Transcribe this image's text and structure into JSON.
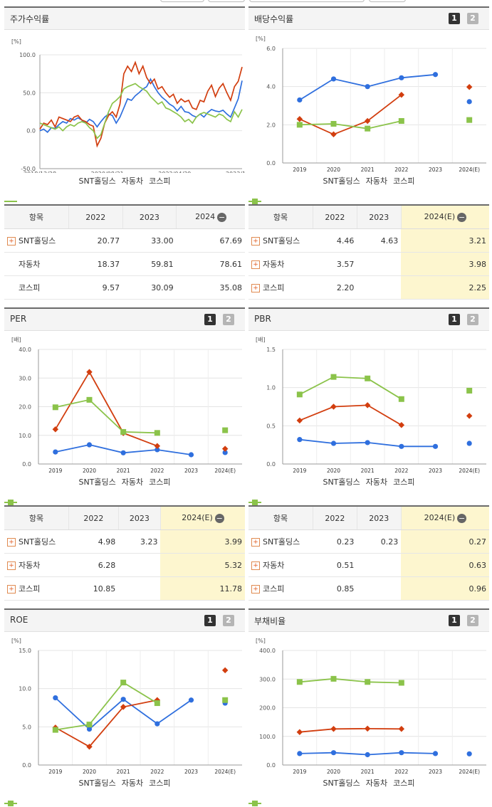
{
  "colors": {
    "snt": "#2f6fde",
    "auto": "#d23e0f",
    "kospi": "#8bc34a"
  },
  "legend": [
    "SNT홀딩스",
    "자동차",
    "코스피"
  ],
  "pager": {
    "one": "1",
    "two": "2"
  },
  "charts": [
    {
      "id": "stock-return",
      "title": "주가수익률",
      "chart_data": {
        "type": "line",
        "unit": "[%]",
        "ylim": [
          -50,
          100
        ],
        "yticks": [
          "100.0",
          "50.0",
          "0.0",
          "-50.0"
        ],
        "xticks": [
          "2018/12/28",
          "2020/08/31",
          "2022/04/29",
          "2023/12/28"
        ],
        "series": [
          {
            "name": "SNT홀딩스",
            "values": [
              0,
              2,
              -2,
              4,
              3,
              8,
              12,
              10,
              16,
              14,
              17,
              14,
              10,
              15,
              12,
              5,
              12,
              18,
              22,
              20,
              10,
              18,
              30,
              42,
              40,
              46,
              50,
              55,
              58,
              68,
              58,
              50,
              44,
              40,
              35,
              32,
              26,
              32,
              25,
              24,
              20,
              18,
              22,
              18,
              24,
              28,
              26,
              25,
              27,
              22,
              18,
              30,
              42,
              66
            ]
          },
          {
            "name": "자동차",
            "values": [
              2,
              10,
              8,
              14,
              5,
              18,
              16,
              14,
              12,
              18,
              20,
              14,
              12,
              8,
              6,
              -20,
              -10,
              10,
              20,
              25,
              18,
              35,
              75,
              85,
              78,
              90,
              75,
              85,
              70,
              62,
              68,
              55,
              58,
              50,
              44,
              48,
              36,
              42,
              38,
              40,
              30,
              28,
              40,
              38,
              52,
              60,
              45,
              56,
              62,
              50,
              40,
              58,
              65,
              84
            ]
          },
          {
            "name": "코스피",
            "values": [
              10,
              8,
              6,
              4,
              2,
              5,
              0,
              5,
              8,
              6,
              10,
              12,
              10,
              4,
              0,
              -10,
              -5,
              10,
              25,
              36,
              40,
              45,
              55,
              58,
              60,
              62,
              58,
              55,
              52,
              45,
              40,
              35,
              38,
              30,
              28,
              25,
              22,
              18,
              12,
              15,
              10,
              18,
              22,
              24,
              22,
              20,
              18,
              22,
              20,
              15,
              12,
              25,
              18,
              28
            ]
          }
        ]
      }
    },
    {
      "id": "dividend-yield",
      "title": "배당수익률",
      "chart_data": {
        "type": "line",
        "categories": [
          "2019",
          "2020",
          "2021",
          "2022",
          "2023",
          "2024(E)"
        ],
        "unit": "[%]",
        "ylim": [
          0,
          6
        ],
        "yticks": [
          "6.0",
          "4.0",
          "2.0",
          "0.0"
        ],
        "series": [
          {
            "name": "SNT홀딩스",
            "values": [
              3.3,
              4.4,
              4.0,
              4.46,
              4.63,
              3.21
            ]
          },
          {
            "name": "자동차",
            "values": [
              2.3,
              1.5,
              2.2,
              3.57,
              null,
              3.98
            ]
          },
          {
            "name": "코스피",
            "values": [
              2.0,
              2.05,
              1.8,
              2.2,
              null,
              2.25
            ]
          }
        ]
      }
    },
    {
      "id": "per",
      "title": "PER",
      "chart_data": {
        "type": "line",
        "categories": [
          "2019",
          "2020",
          "2021",
          "2022",
          "2023",
          "2024(E)"
        ],
        "unit": "[배]",
        "ylim": [
          0,
          40
        ],
        "yticks": [
          "40.0",
          "30.0",
          "20.0",
          "10.0",
          "0.0"
        ],
        "series": [
          {
            "name": "SNT홀딩스",
            "values": [
              4.2,
              6.7,
              3.9,
              4.98,
              3.23,
              3.99
            ]
          },
          {
            "name": "자동차",
            "values": [
              12.1,
              32.1,
              10.8,
              6.28,
              null,
              5.32
            ]
          },
          {
            "name": "코스피",
            "values": [
              19.8,
              22.4,
              11.2,
              10.85,
              null,
              11.78
            ]
          }
        ]
      }
    },
    {
      "id": "pbr",
      "title": "PBR",
      "chart_data": {
        "type": "line",
        "categories": [
          "2019",
          "2020",
          "2021",
          "2022",
          "2023",
          "2024(E)"
        ],
        "unit": "[배]",
        "ylim": [
          0,
          1.5
        ],
        "yticks": [
          "1.5",
          "1.0",
          "0.5",
          "0.0"
        ],
        "series": [
          {
            "name": "SNT홀딩스",
            "values": [
              0.32,
              0.27,
              0.28,
              0.23,
              0.23,
              0.27
            ]
          },
          {
            "name": "자동차",
            "values": [
              0.57,
              0.75,
              0.77,
              0.51,
              null,
              0.63
            ]
          },
          {
            "name": "코스피",
            "values": [
              0.91,
              1.14,
              1.12,
              0.85,
              null,
              0.96
            ]
          }
        ]
      }
    },
    {
      "id": "roe",
      "title": "ROE",
      "chart_data": {
        "type": "line",
        "categories": [
          "2019",
          "2020",
          "2021",
          "2022",
          "2023",
          "2024(E)"
        ],
        "unit": "[%]",
        "ylim": [
          0,
          15
        ],
        "yticks": [
          "15.0",
          "10.0",
          "5.0",
          "0.0"
        ],
        "series": [
          {
            "name": "SNT홀딩스",
            "values": [
              8.8,
              4.7,
              8.6,
              5.4,
              8.5,
              8.1
            ]
          },
          {
            "name": "자동차",
            "values": [
              4.9,
              2.4,
              7.6,
              8.5,
              null,
              12.4
            ]
          },
          {
            "name": "코스피",
            "values": [
              4.6,
              5.3,
              10.8,
              8.1,
              null,
              8.5
            ]
          }
        ]
      }
    },
    {
      "id": "debt-ratio",
      "title": "부채비율",
      "chart_data": {
        "type": "line",
        "categories": [
          "2019",
          "2020",
          "2021",
          "2022",
          "2023",
          "2024(E)"
        ],
        "unit": "[%]",
        "ylim": [
          0,
          400
        ],
        "yticks": [
          "400.0",
          "300.0",
          "200.0",
          "100.0",
          "0.0"
        ],
        "series": [
          {
            "name": "SNT홀딩스",
            "values": [
              40,
              43,
              36,
              43,
              40,
              39
            ]
          },
          {
            "name": "자동차",
            "values": [
              115,
              126,
              127,
              126,
              null,
              null
            ]
          },
          {
            "name": "코스피",
            "values": [
              290,
              301,
              290,
              287,
              null,
              null
            ]
          }
        ]
      }
    }
  ],
  "tables": [
    {
      "id": "stock-return-table",
      "headers": [
        "항목",
        "2022",
        "2023",
        "2024"
      ],
      "rows": [
        {
          "name": "SNT홀딩스",
          "plus": true,
          "values": [
            "20.77",
            "33.00",
            "67.69"
          ]
        },
        {
          "name": "자동차",
          "plus": false,
          "values": [
            "18.37",
            "59.81",
            "78.61"
          ]
        },
        {
          "name": "코스피",
          "plus": false,
          "values": [
            "9.57",
            "30.09",
            "35.08"
          ]
        }
      ]
    },
    {
      "id": "dividend-table",
      "headers": [
        "항목",
        "2022",
        "2023",
        "2024(E)"
      ],
      "rows": [
        {
          "name": "SNT홀딩스",
          "plus": true,
          "values": [
            "4.46",
            "4.63",
            "3.21"
          ]
        },
        {
          "name": "자동차",
          "plus": true,
          "values": [
            "3.57",
            "",
            "3.98"
          ]
        },
        {
          "name": "코스피",
          "plus": true,
          "values": [
            "2.20",
            "",
            "2.25"
          ]
        }
      ]
    },
    {
      "id": "per-table",
      "headers": [
        "항목",
        "2022",
        "2023",
        "2024(E)"
      ],
      "rows": [
        {
          "name": "SNT홀딩스",
          "plus": true,
          "values": [
            "4.98",
            "3.23",
            "3.99"
          ]
        },
        {
          "name": "자동차",
          "plus": true,
          "values": [
            "6.28",
            "",
            "5.32"
          ]
        },
        {
          "name": "코스피",
          "plus": true,
          "values": [
            "10.85",
            "",
            "11.78"
          ]
        }
      ]
    },
    {
      "id": "pbr-table",
      "headers": [
        "항목",
        "2022",
        "2023",
        "2024(E)"
      ],
      "rows": [
        {
          "name": "SNT홀딩스",
          "plus": true,
          "values": [
            "0.23",
            "0.23",
            "0.27"
          ]
        },
        {
          "name": "자동차",
          "plus": true,
          "values": [
            "0.51",
            "",
            "0.63"
          ]
        },
        {
          "name": "코스피",
          "plus": true,
          "values": [
            "0.85",
            "",
            "0.96"
          ]
        }
      ]
    }
  ]
}
